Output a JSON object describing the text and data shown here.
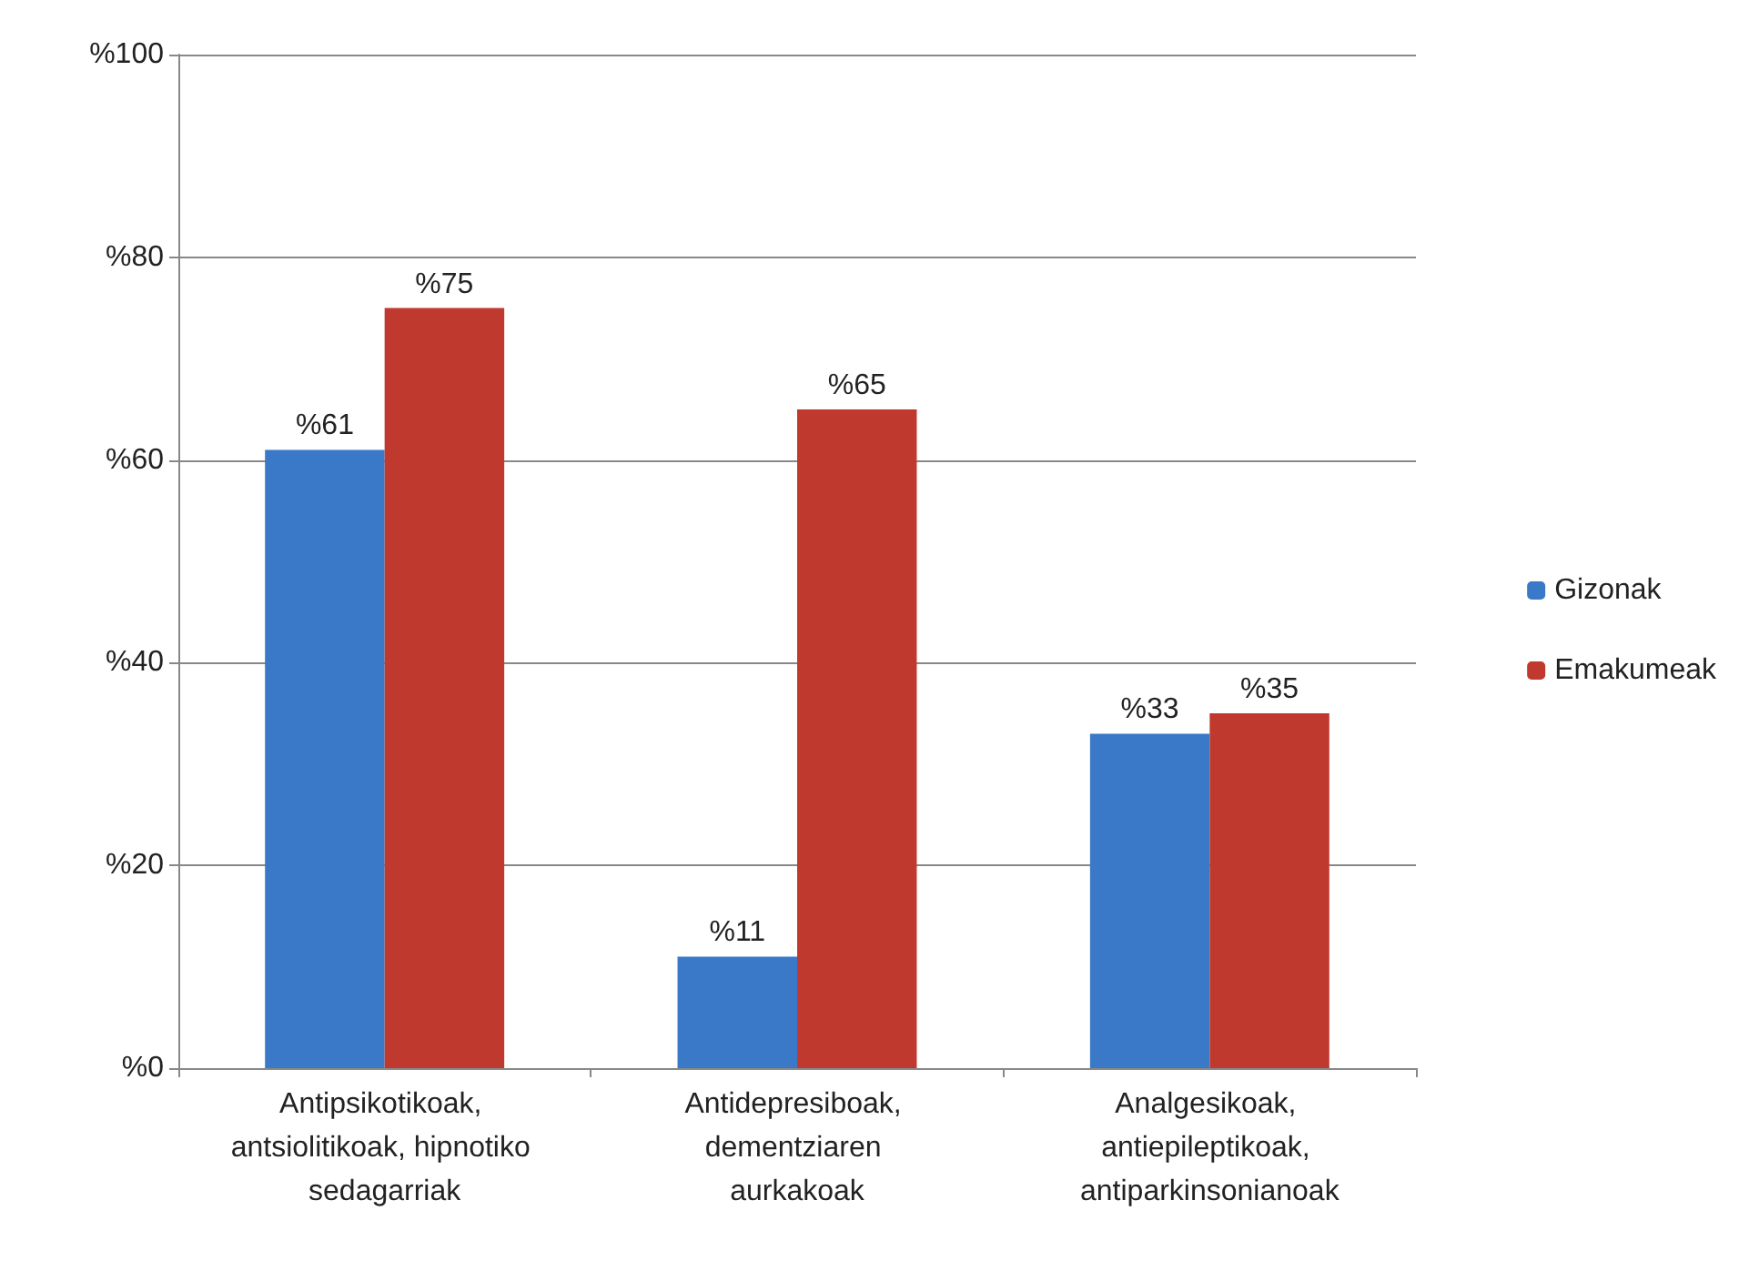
{
  "chart_data": {
    "type": "bar",
    "categories": [
      "Antipsikotikoak, antsiolitikoak, hipnotiko sedagarriak",
      "Antidepresiboak, dementziaren aurkakoak",
      "Analgesikoak, antiepileptikoak, antiparkinsonianoak"
    ],
    "series": [
      {
        "name": "Gizonak",
        "color": "#3a78c8",
        "values": [
          61,
          11,
          33
        ],
        "value_labels": [
          "%61",
          "%11",
          "%33"
        ]
      },
      {
        "name": "Emakumeak",
        "color": "#c0392f",
        "values": [
          75,
          65,
          35
        ],
        "value_labels": [
          "%75",
          "%65",
          "%35"
        ]
      }
    ],
    "ylim": [
      0,
      100
    ],
    "yticks": [
      {
        "value": 0,
        "label": "%0"
      },
      {
        "value": 20,
        "label": "%20"
      },
      {
        "value": 40,
        "label": "%40"
      },
      {
        "value": 60,
        "label": "%60"
      },
      {
        "value": 80,
        "label": "%80"
      },
      {
        "value": 100,
        "label": "%100"
      }
    ],
    "grid": "y",
    "legend": "right"
  }
}
